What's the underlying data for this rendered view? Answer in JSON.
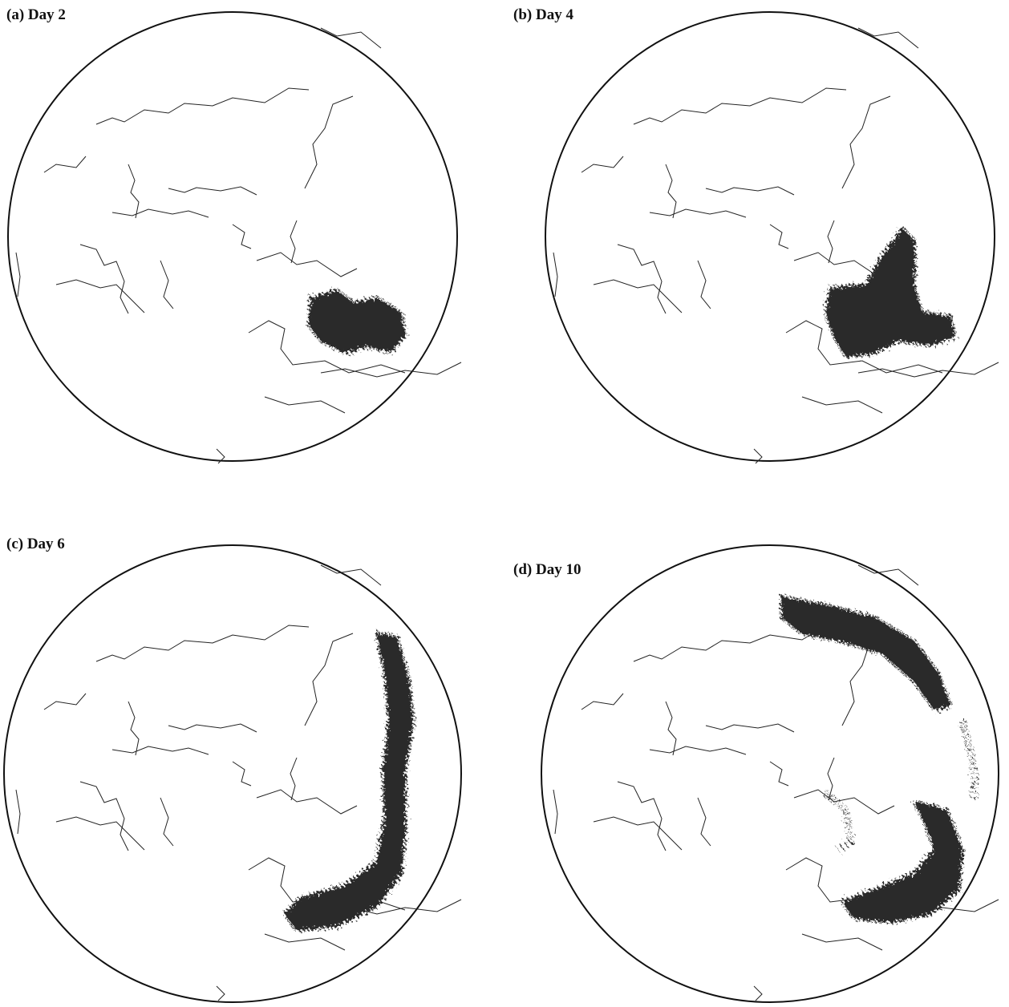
{
  "panels": [
    {
      "label": "(a) Day 2"
    },
    {
      "label": "(b) Day 4"
    },
    {
      "label": "(c) Day 6"
    },
    {
      "label": "(d) Day 10"
    }
  ]
}
